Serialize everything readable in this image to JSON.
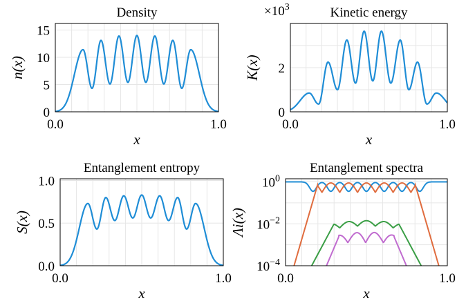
{
  "chart_data": [
    {
      "type": "line",
      "title": "Density",
      "xlabel": "x",
      "ylabel": "n(x)",
      "xlim": [
        0,
        1
      ],
      "ylim": [
        0,
        16.2
      ],
      "xticks": [
        "0.0",
        "1.0"
      ],
      "yticks": [
        "0",
        "5",
        "10",
        "15"
      ],
      "grid": true,
      "series": [
        {
          "color": "#1f8dd6",
          "peaks_x": [
            0.17,
            0.28,
            0.39,
            0.5,
            0.61,
            0.72,
            0.83
          ],
          "peaks_y": [
            11.4,
            13.1,
            13.9,
            14.0,
            13.9,
            13.1,
            11.4
          ],
          "valley_y": [
            4.3,
            5.1,
            5.4,
            5.4,
            5.1,
            4.3
          ]
        }
      ]
    },
    {
      "type": "line",
      "title": "Kinetic energy",
      "multiplier": "×10",
      "multiplier_exp": "3",
      "xlabel": "x",
      "ylabel": "K(x)",
      "xlim": [
        0,
        1
      ],
      "ylim": [
        0,
        4.0
      ],
      "xticks": [
        "0.0",
        "1.0"
      ],
      "yticks": [
        "0",
        "2"
      ],
      "grid": true,
      "series": [
        {
          "color": "#1f8dd6",
          "peaks_x": [
            0.12,
            0.24,
            0.36,
            0.47,
            0.58,
            0.7,
            0.81,
            0.93
          ],
          "peaks_y": [
            0.85,
            2.25,
            3.25,
            3.65,
            3.65,
            3.25,
            2.25,
            0.85
          ],
          "valley_y": [
            0.35,
            1.0,
            1.3,
            1.4,
            1.3,
            1.0,
            0.35
          ]
        }
      ]
    },
    {
      "type": "line",
      "title": "Entanglement entropy",
      "xlabel": "x",
      "ylabel": "S(x)",
      "xlim": [
        0,
        1
      ],
      "ylim": [
        0,
        1.02
      ],
      "xticks": [
        "0.0",
        "1.0"
      ],
      "yticks": [
        "0.0",
        "0.5",
        "1.0"
      ],
      "grid": true,
      "series": [
        {
          "color": "#1f8dd6",
          "peaks_x": [
            0.17,
            0.28,
            0.39,
            0.5,
            0.61,
            0.72,
            0.83
          ],
          "peaks_y": [
            0.73,
            0.8,
            0.82,
            0.83,
            0.82,
            0.8,
            0.73
          ],
          "valley_y": [
            0.43,
            0.53,
            0.56,
            0.56,
            0.53,
            0.43
          ]
        }
      ]
    },
    {
      "type": "line",
      "title": "Entanglement spectra",
      "xlabel": "x",
      "ylabel": "Λi(x)",
      "yscale": "log",
      "xlim": [
        0,
        1
      ],
      "ylim_log10": [
        -4,
        0.15
      ],
      "xticks": [
        "0.0",
        "1.0"
      ],
      "yticks": [
        {
          "base": "10",
          "exp": "0"
        },
        {
          "base": "10",
          "exp": "−2"
        },
        {
          "base": "10",
          "exp": "−4"
        }
      ],
      "grid": true,
      "series": [
        {
          "color": "#1f8dd6"
        },
        {
          "color": "#e06c3e"
        },
        {
          "color": "#3a9e45"
        },
        {
          "color": "#c06bcf"
        }
      ]
    }
  ]
}
